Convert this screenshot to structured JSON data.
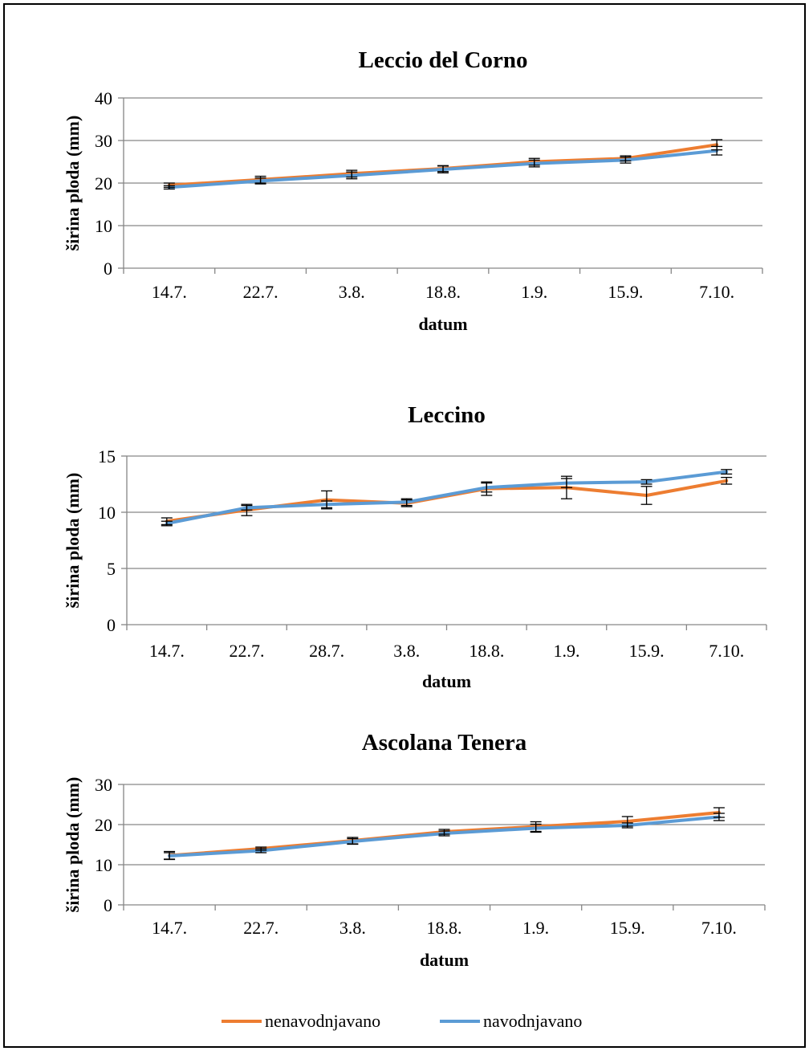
{
  "series_names": [
    "nenavodnjavano",
    "navodnjavano"
  ],
  "colors": {
    "nenavodnjavano": "#ED7D31",
    "navodnjavano": "#5B9BD5",
    "grid": "#868686",
    "text": "#000000"
  },
  "chart_data": [
    {
      "type": "line",
      "title": "Leccio del Corno",
      "xlabel": "datum",
      "ylabel": "širina ploda (mm)",
      "categories": [
        "14.7.",
        "22.7.",
        "3.8.",
        "18.8.",
        "1.9.",
        "15.9.",
        "7.10."
      ],
      "ylim": [
        0,
        40
      ],
      "yticks": [
        0,
        10,
        20,
        30,
        40
      ],
      "grid": true,
      "series": [
        {
          "name": "nenavodnjavano",
          "values": [
            19.5,
            20.8,
            22.2,
            23.4,
            25.0,
            25.8,
            29.0
          ],
          "error": [
            0.5,
            0.8,
            0.8,
            0.7,
            0.8,
            0.6,
            1.2
          ]
        },
        {
          "name": "navodnjavano",
          "values": [
            19.0,
            20.5,
            21.8,
            23.2,
            24.6,
            25.4,
            27.6
          ],
          "error": [
            0.4,
            0.7,
            0.8,
            0.8,
            0.8,
            0.7,
            1.0
          ]
        }
      ]
    },
    {
      "type": "line",
      "title": "Leccino",
      "xlabel": "datum",
      "ylabel": "širina ploda (mm)",
      "categories": [
        "14.7.",
        "22.7.",
        "28.7.",
        "3.8.",
        "18.8.",
        "1.9.",
        "15.9.",
        "7.10."
      ],
      "ylim": [
        0,
        15
      ],
      "yticks": [
        0,
        5,
        10,
        15
      ],
      "grid": true,
      "series": [
        {
          "name": "nenavodnjavano",
          "values": [
            9.2,
            10.2,
            11.1,
            10.8,
            12.1,
            12.2,
            11.5,
            12.8
          ],
          "error": [
            0.3,
            0.5,
            0.8,
            0.3,
            0.6,
            1.0,
            0.8,
            0.3
          ]
        },
        {
          "name": "navodnjavano",
          "values": [
            9.0,
            10.4,
            10.7,
            10.9,
            12.2,
            12.6,
            12.7,
            13.6
          ],
          "error": [
            0.2,
            0.2,
            0.3,
            0.3,
            0.4,
            0.4,
            0.2,
            0.2
          ]
        }
      ]
    },
    {
      "type": "line",
      "title": "Ascolana Tenera",
      "xlabel": "datum",
      "ylabel": "širina ploda (mm)",
      "categories": [
        "14.7.",
        "22.7.",
        "3.8.",
        "18.8.",
        "1.9.",
        "15.9.",
        "7.10."
      ],
      "ylim": [
        0,
        30
      ],
      "yticks": [
        0,
        10,
        20,
        30
      ],
      "grid": true,
      "series": [
        {
          "name": "nenavodnjavano",
          "values": [
            12.3,
            14.0,
            16.0,
            18.2,
            19.5,
            20.8,
            23.0
          ],
          "error": [
            1.0,
            0.4,
            0.8,
            0.6,
            1.2,
            1.2,
            1.2
          ]
        },
        {
          "name": "navodnjavano",
          "values": [
            12.2,
            13.5,
            15.8,
            17.8,
            19.1,
            19.8,
            21.9
          ],
          "error": [
            0.8,
            0.5,
            0.7,
            0.6,
            1.0,
            0.6,
            0.9
          ]
        }
      ]
    }
  ]
}
